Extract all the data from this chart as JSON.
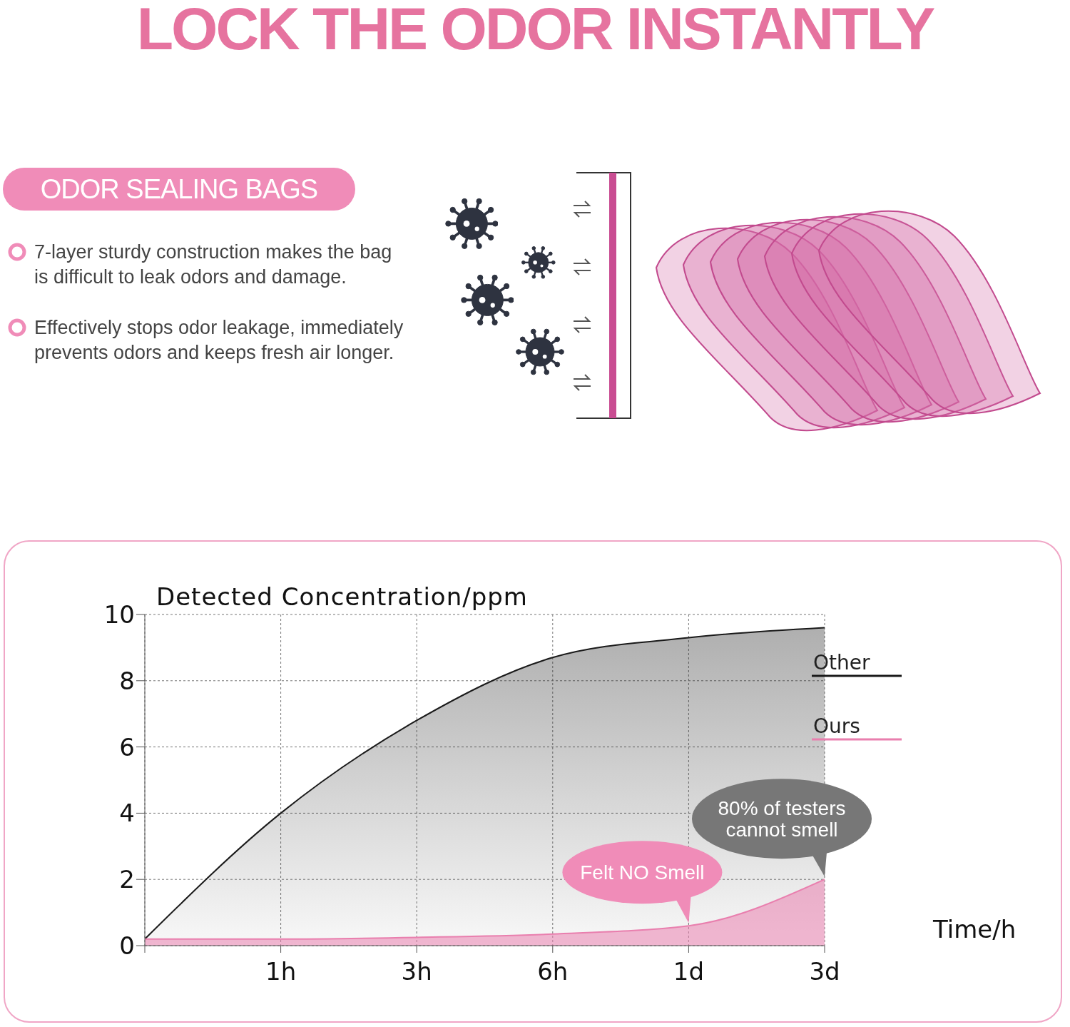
{
  "chart_data": {
    "type": "area",
    "title": "LOCK THE ODOR INSTANTLY",
    "ylabel": "Detected Concentration/ppm",
    "xlabel": "Time/h",
    "categories": [
      null,
      "1h",
      "3h",
      "6h",
      "1d",
      "3d"
    ],
    "series": [
      {
        "name": "Other",
        "color": "#1a1a1a",
        "values": [
          0.2,
          4.0,
          6.8,
          8.7,
          9.3,
          9.6
        ]
      },
      {
        "name": "Ours",
        "color": "#e97fae",
        "values": [
          0.2,
          0.2,
          0.25,
          0.35,
          0.6,
          2.0
        ]
      }
    ],
    "ylim": [
      0,
      10
    ],
    "yticks": [
      0,
      2,
      4,
      6,
      8,
      10
    ],
    "grid": true,
    "legend": "top right",
    "annotations": [
      "ODOR SEALING BAGS",
      "7-layer sturdy construction makes the bag is difficult to leak odors and damage.",
      "Effectively stops odor leakage, immediately prevents odors and keeps fresh air longer.",
      {
        "text": "Felt NO Smell",
        "x": "1d",
        "y": 0.6
      },
      {
        "text": "80% of testers cannot smell",
        "x": "3d",
        "y": 2.0
      }
    ]
  }
}
